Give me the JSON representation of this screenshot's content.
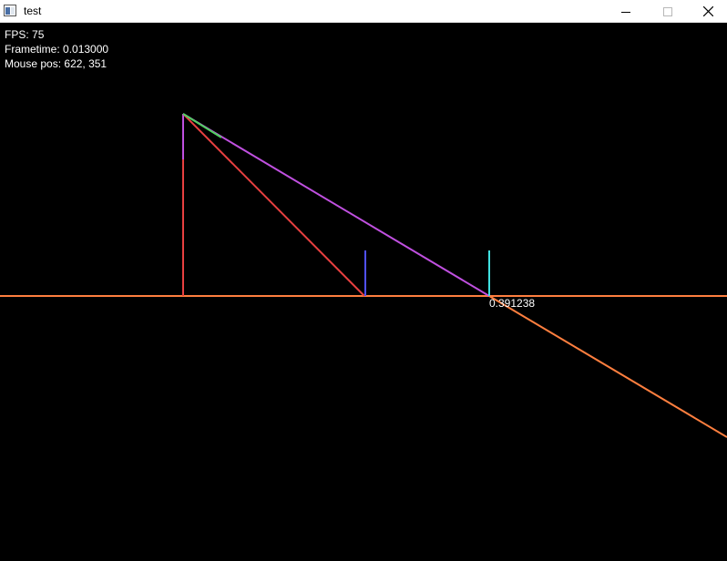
{
  "window": {
    "title": "test",
    "icon": "app-window-icon",
    "controls": {
      "minimize_icon": "minimize-icon",
      "maximize_icon": "maximize-icon",
      "close_icon": "close-icon"
    }
  },
  "hud": {
    "fps_label": "FPS:",
    "fps_value": "75",
    "frametime_label": "Frametime:",
    "frametime_value": "0.013000",
    "mouse_label": "Mouse pos:",
    "mouse_value": "622, 351"
  },
  "scene": {
    "intersection_value": "0.391238",
    "colors": {
      "background": "#000000",
      "horizon_line": "#ff7f3f",
      "ray_line": "#ff7f3f",
      "red_line": "#e84040",
      "magenta_line": "#c050e0",
      "green_segment": "#50d060",
      "blue_marker": "#5050ff",
      "cyan_marker": "#40e0e0"
    }
  }
}
